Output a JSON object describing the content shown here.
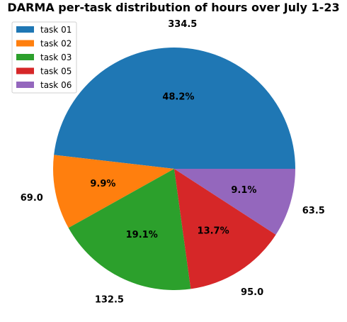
{
  "chart_data": {
    "type": "pie",
    "title": "DARMA per-task distribution of hours over July 1-23",
    "categories": [
      "task 01",
      "task 02",
      "task 03",
      "task 05",
      "task 06"
    ],
    "values": [
      334.5,
      69.0,
      132.5,
      95.0,
      63.5
    ],
    "value_labels": [
      "334.5",
      "69.0",
      "132.5",
      "95.0",
      "63.5"
    ],
    "percent_labels": [
      "48.2%",
      "9.9%",
      "19.1%",
      "13.7%",
      "9.1%"
    ],
    "colors": [
      "#1f77b4",
      "#ff7f0e",
      "#2ca02c",
      "#d62728",
      "#9467bd"
    ],
    "start_angle_deg": 0,
    "direction": "counterclockwise",
    "legend_position": "upper-left"
  }
}
